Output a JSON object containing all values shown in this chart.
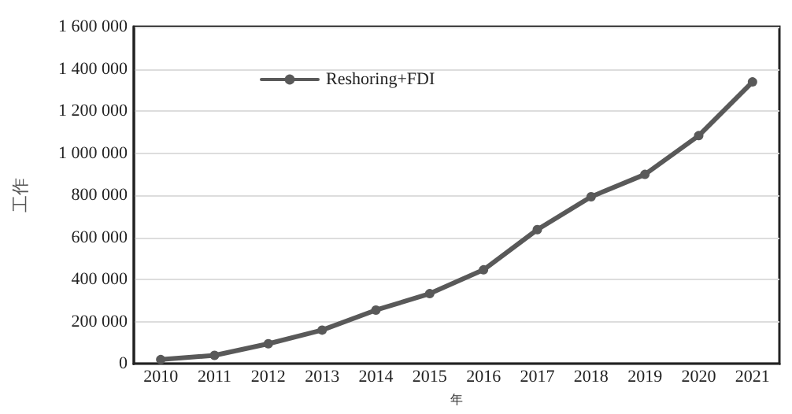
{
  "chart_data": {
    "type": "line",
    "xlabel": "年",
    "ylabel": "工作",
    "categories": [
      "2010",
      "2011",
      "2012",
      "2013",
      "2014",
      "2015",
      "2016",
      "2017",
      "2018",
      "2019",
      "2020",
      "2021"
    ],
    "series": [
      {
        "name": "Reshoring+FDI",
        "color": "#595959",
        "values": [
          20000,
          40000,
          95000,
          160000,
          255000,
          333000,
          446000,
          637000,
          793000,
          899000,
          1083000,
          1338000
        ]
      }
    ],
    "ylim": [
      0,
      1600000
    ],
    "yticks": [
      0,
      {
        "value": 200000,
        "label": "200 000"
      },
      {
        "value": 400000,
        "label": "400 000"
      },
      {
        "value": 600000,
        "label": "600 000"
      },
      {
        "value": 800000,
        "label": "800 000"
      },
      {
        "value": 1000000,
        "label": "1 000 000"
      },
      {
        "value": 1200000,
        "label": "1 200 000"
      },
      {
        "value": 1400000,
        "label": "1 400 000"
      },
      {
        "value": 1600000,
        "label": "1 600 000"
      }
    ],
    "grid": "y",
    "legend": "top left",
    "marker": "circle",
    "line_style": "solid"
  }
}
